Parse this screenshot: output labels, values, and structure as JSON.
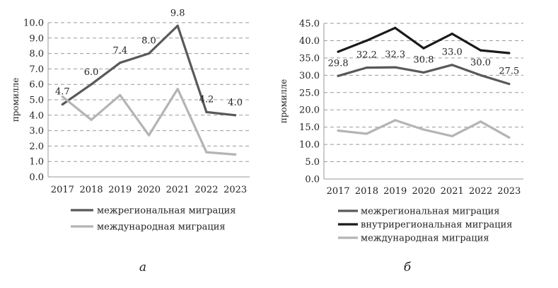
{
  "chart_data": [
    {
      "type": "line",
      "panel_label": "а",
      "ylabel": "промилле",
      "ylim": [
        0,
        10
      ],
      "yticks": [
        "0.0",
        "1.0",
        "2.0",
        "3.0",
        "4.0",
        "5.0",
        "6.0",
        "7.0",
        "8.0",
        "9.0",
        "10.0"
      ],
      "categories": [
        "2017",
        "2018",
        "2019",
        "2020",
        "2021",
        "2022",
        "2023"
      ],
      "grid": true,
      "legend_position": "bottom",
      "series": [
        {
          "name": "межрегиональная миграция",
          "color": "#595959",
          "values": [
            4.7,
            6.0,
            7.4,
            8.0,
            9.8,
            4.2,
            4.0
          ],
          "labels": [
            "4.7",
            "6.0",
            "7.4",
            "8.0",
            "9.8",
            "4.2",
            "4.0"
          ]
        },
        {
          "name": "международная миграция",
          "color": "#b4b4b4",
          "values": [
            5.2,
            3.7,
            5.3,
            2.7,
            5.7,
            1.6,
            1.45
          ],
          "labels": []
        }
      ]
    },
    {
      "type": "line",
      "panel_label": "б",
      "ylabel": "промилле",
      "ylim": [
        0,
        45
      ],
      "yticks": [
        "0.0",
        "5.0",
        "10.0",
        "15.0",
        "20.0",
        "25.0",
        "30.0",
        "35.0",
        "40.0",
        "45.0"
      ],
      "categories": [
        "2017",
        "2018",
        "2019",
        "2020",
        "2021",
        "2022",
        "2023"
      ],
      "grid": true,
      "legend_position": "bottom",
      "series": [
        {
          "name": "межрегиональная миграция",
          "color": "#595959",
          "values": [
            29.8,
            32.2,
            32.3,
            30.8,
            33.0,
            30.0,
            27.5
          ],
          "labels": [
            "29.8",
            "32.2",
            "32.3",
            "30.8",
            "33.0",
            "30.0",
            "27.5"
          ]
        },
        {
          "name": "внутрирегиональная миграция",
          "color": "#1a1a1a",
          "values": [
            36.8,
            40.0,
            43.7,
            37.8,
            42.0,
            37.2,
            36.4
          ],
          "labels": []
        },
        {
          "name": "международная миграция",
          "color": "#b4b4b4",
          "values": [
            14.0,
            13.1,
            17.0,
            14.3,
            12.4,
            16.6,
            12.0
          ],
          "labels": []
        }
      ]
    }
  ]
}
